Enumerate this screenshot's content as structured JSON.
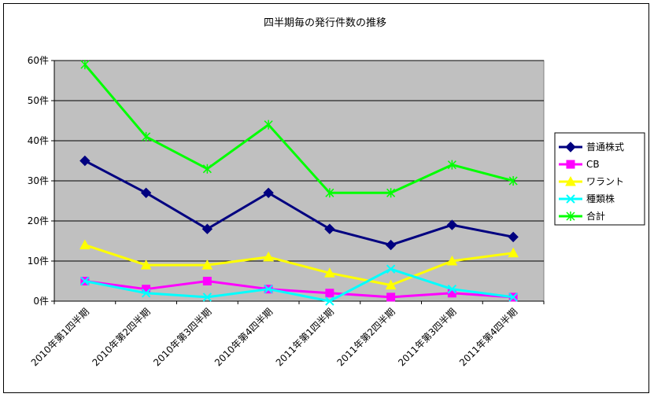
{
  "chart_data": {
    "type": "line",
    "title": "四半期毎の発行件数の推移",
    "xlabel": "",
    "ylabel": "",
    "ylim": [
      0,
      60
    ],
    "yticks": [
      "0件",
      "10件",
      "20件",
      "30件",
      "40件",
      "50件",
      "60件"
    ],
    "categories": [
      "2010年第1四半期",
      "2010年第2四半期",
      "2010年第3四半期",
      "2010年第4四半期",
      "2011年第1四半期",
      "2011年第2四半期",
      "2011年第3四半期",
      "2011年第4四半期"
    ],
    "grid": true,
    "plot_background": "#c0c0c0",
    "legend_position": "right",
    "series": [
      {
        "name": "普通株式",
        "color": "#000080",
        "marker": "diamond",
        "values": [
          35,
          27,
          18,
          27,
          18,
          14,
          19,
          16
        ]
      },
      {
        "name": "CB",
        "color": "#ff00ff",
        "marker": "square",
        "values": [
          5,
          3,
          5,
          3,
          2,
          1,
          2,
          1
        ]
      },
      {
        "name": "ワラント",
        "color": "#ffff00",
        "marker": "triangle",
        "values": [
          14,
          9,
          9,
          11,
          7,
          4,
          10,
          12
        ]
      },
      {
        "name": "種類株",
        "color": "#00ffff",
        "marker": "x",
        "values": [
          5,
          2,
          1,
          3,
          0,
          8,
          3,
          1
        ]
      },
      {
        "name": "合計",
        "color": "#00ff00",
        "marker": "star",
        "values": [
          59,
          41,
          33,
          44,
          27,
          27,
          34,
          30
        ]
      }
    ]
  }
}
